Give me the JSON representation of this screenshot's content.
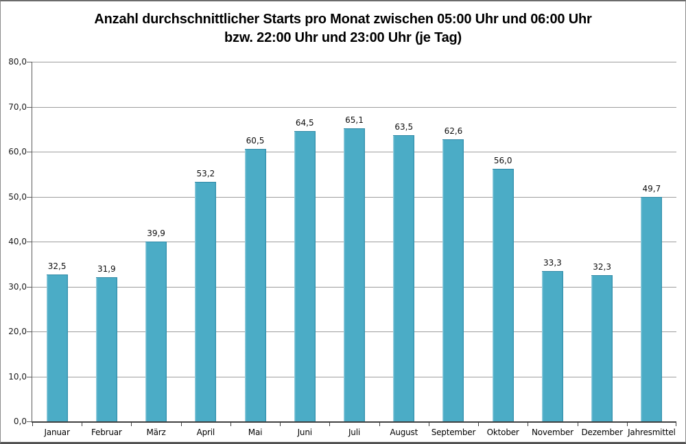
{
  "chart_data": {
    "type": "bar",
    "title": "Anzahl durchschnittlicher Starts pro Monat zwischen 05:00 Uhr und 06:00 Uhr bzw. 22:00 Uhr und 23:00 Uhr (je Tag)",
    "title_line1": "Anzahl durchschnittlicher Starts pro Monat zwischen 05:00 Uhr und 06:00 Uhr",
    "title_line2": "bzw. 22:00 Uhr und 23:00 Uhr (je Tag)",
    "categories": [
      "Januar",
      "Februar",
      "März",
      "April",
      "Mai",
      "Juni",
      "Juli",
      "August",
      "September",
      "Oktober",
      "November",
      "Dezember",
      "Jahresmittel"
    ],
    "values": [
      32.5,
      31.9,
      39.9,
      53.2,
      60.5,
      64.5,
      65.1,
      63.5,
      62.6,
      56.0,
      33.3,
      32.3,
      49.7
    ],
    "value_labels": [
      "32,5",
      "31,9",
      "39,9",
      "53,2",
      "60,5",
      "64,5",
      "65,1",
      "63,5",
      "62,6",
      "56,0",
      "33,3",
      "32,3",
      "49,7"
    ],
    "xlabel": "",
    "ylabel": "",
    "ylim": [
      0,
      80
    ],
    "y_tick_values": [
      0,
      10,
      20,
      30,
      40,
      50,
      60,
      70,
      80
    ],
    "y_tick_labels": [
      "0,0",
      "10,0",
      "20,0",
      "30,0",
      "40,0",
      "50,0",
      "60,0",
      "70,0",
      "80,0"
    ],
    "grid": true,
    "legend": "none",
    "colors": {
      "bar_fill": "#4BACC6",
      "bar_edge_dark": "#2F89A6",
      "bar_edge_light": "#A7D5E2",
      "gridline": "#9c9c9c",
      "axis_line": "#3f3f3f",
      "tick": "#5e5e5e",
      "text": "#000000"
    }
  }
}
